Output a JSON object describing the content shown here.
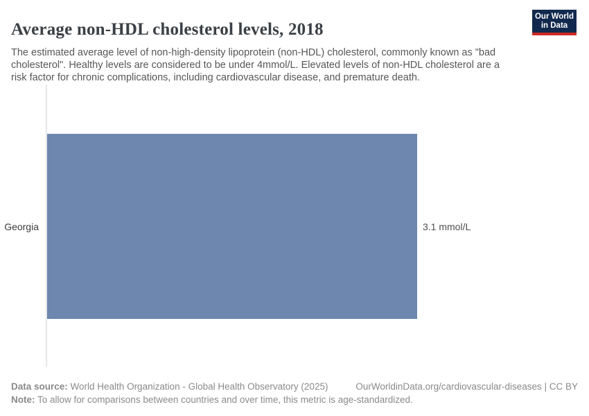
{
  "header": {
    "title": "Average non-HDL cholesterol levels, 2018",
    "subtitle": "The estimated average level of non-high-density lipoprotein (non-HDL) cholesterol, commonly known as \"bad cholesterol\". Healthy levels are considered to be under 4mmol/L. Elevated levels of non-HDL cholesterol are a risk factor for chronic complications, including cardiovascular disease, and premature death.",
    "logo": {
      "line1": "Our World",
      "line2": "in Data"
    }
  },
  "chart_data": {
    "type": "bar",
    "orientation": "horizontal",
    "title": "Average non-HDL cholesterol levels, 2018",
    "categories": [
      "Georgia"
    ],
    "values": [
      3.1
    ],
    "unit": "mmol/L",
    "value_labels": [
      "3.1 mmol/L"
    ],
    "xlabel": "",
    "ylabel": "",
    "xlim": [
      0,
      3.1
    ],
    "grid": false,
    "legend": "none"
  },
  "footer": {
    "data_source_label": "Data source:",
    "data_source_text": " World Health Organization - Global Health Observatory (2025)",
    "attribution": "OurWorldinData.org/cardiovascular-diseases | CC BY",
    "note_label": "Note:",
    "note_text": " To allow for comparisons between countries and over time, this metric is age-standardized."
  },
  "colors": {
    "bar": "#6e87ae",
    "axis": "#e7e7e7",
    "title": "#3b4045",
    "subtitle": "#565656",
    "label": "#3c3c3c",
    "value": "#4f4f4f",
    "footer": "#8a8a8a",
    "logo_bg": "#12294e",
    "logo_accent": "#cd2a23"
  }
}
